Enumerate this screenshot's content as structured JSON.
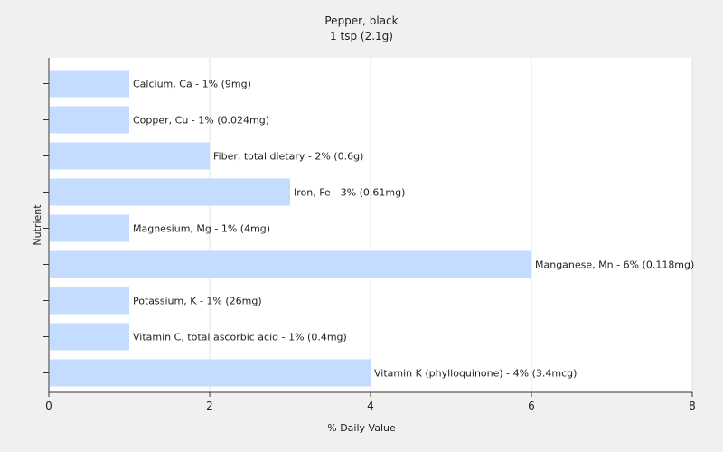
{
  "chart_data": {
    "type": "bar",
    "orientation": "horizontal",
    "title": "Pepper, black",
    "subtitle": "1 tsp (2.1g)",
    "xlabel": "% Daily Value",
    "ylabel": "Nutrient",
    "xlim": [
      0,
      8
    ],
    "xticks": [
      "0",
      "2",
      "4",
      "6",
      "8"
    ],
    "grid": "vertical",
    "bar_color": "#c4dcff",
    "categories": [
      "Calcium, Ca",
      "Copper, Cu",
      "Fiber, total dietary",
      "Iron, Fe",
      "Magnesium, Mg",
      "Manganese, Mn",
      "Potassium, K",
      "Vitamin C, total ascorbic acid",
      "Vitamin K (phylloquinone)"
    ],
    "values": [
      1,
      1,
      2,
      3,
      1,
      6,
      1,
      1,
      4
    ],
    "labels": [
      "Calcium, Ca - 1% (9mg)",
      "Copper, Cu - 1% (0.024mg)",
      "Fiber, total dietary - 2% (0.6g)",
      "Iron, Fe - 3% (0.61mg)",
      "Magnesium, Mg - 1% (4mg)",
      "Manganese, Mn - 6% (0.118mg)",
      "Potassium, K - 1% (26mg)",
      "Vitamin C, total ascorbic acid - 1% (0.4mg)",
      "Vitamin K (phylloquinone) - 4% (3.4mcg)"
    ]
  }
}
